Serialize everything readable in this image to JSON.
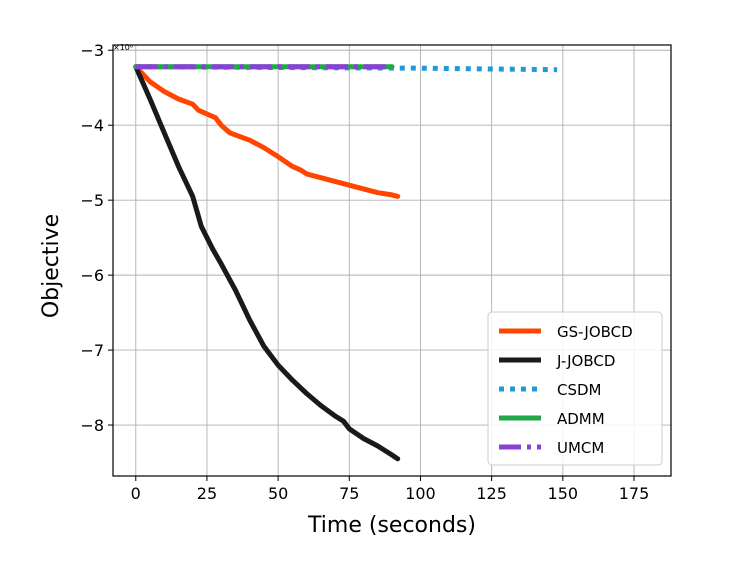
{
  "chart_data": {
    "type": "line",
    "xlabel": "Time (seconds)",
    "ylabel": "Objective",
    "y_multiplier_label": "×10⁶",
    "xlim": [
      -8,
      188
    ],
    "ylim": [
      -8.68,
      -2.93
    ],
    "x_ticks": [
      0,
      25,
      50,
      75,
      100,
      125,
      150,
      175
    ],
    "x_tick_labels": [
      "0",
      "25",
      "50",
      "75",
      "100",
      "125",
      "150",
      "175"
    ],
    "y_ticks": [
      -3,
      -4,
      -5,
      -6,
      -7,
      -8
    ],
    "y_tick_labels": [
      "−3",
      "−4",
      "−5",
      "−6",
      "−7",
      "−8"
    ],
    "grid": true,
    "legend_position": "bottom-right",
    "series": [
      {
        "name": "GS-JOBCD",
        "color": "#FF4500",
        "style": "solid",
        "x": [
          0,
          5,
          10,
          15,
          20,
          22,
          25,
          28,
          30,
          33,
          35,
          40,
          45,
          50,
          55,
          58,
          60,
          65,
          70,
          75,
          80,
          85,
          90,
          92
        ],
        "y": [
          -3.22,
          -3.42,
          -3.55,
          -3.65,
          -3.72,
          -3.8,
          -3.85,
          -3.9,
          -4.0,
          -4.1,
          -4.13,
          -4.2,
          -4.3,
          -4.42,
          -4.55,
          -4.6,
          -4.65,
          -4.7,
          -4.75,
          -4.8,
          -4.85,
          -4.9,
          -4.93,
          -4.95
        ]
      },
      {
        "name": "J-JOBCD",
        "color": "#1a1a1a",
        "style": "solid",
        "x": [
          0,
          5,
          10,
          15,
          20,
          23,
          27,
          30,
          35,
          40,
          45,
          50,
          55,
          60,
          65,
          70,
          73,
          75,
          80,
          85,
          90,
          92
        ],
        "y": [
          -3.22,
          -3.65,
          -4.1,
          -4.55,
          -4.95,
          -5.35,
          -5.65,
          -5.85,
          -6.2,
          -6.6,
          -6.95,
          -7.2,
          -7.4,
          -7.58,
          -7.74,
          -7.88,
          -7.95,
          -8.05,
          -8.18,
          -8.28,
          -8.4,
          -8.45
        ]
      },
      {
        "name": "CSDM",
        "color": "#1f9ad6",
        "style": "dotted",
        "x": [
          0,
          50,
          100,
          148
        ],
        "y": [
          -3.22,
          -3.23,
          -3.24,
          -3.26
        ]
      },
      {
        "name": "ADMM",
        "color": "#22a84a",
        "style": "solid",
        "x": [
          0,
          40,
          90
        ],
        "y": [
          -3.22,
          -3.22,
          -3.22
        ]
      },
      {
        "name": "UMCM",
        "color": "#8a3fd6",
        "style": "dashdot",
        "x": [
          0,
          40,
          90
        ],
        "y": [
          -3.22,
          -3.22,
          -3.22
        ]
      }
    ]
  }
}
